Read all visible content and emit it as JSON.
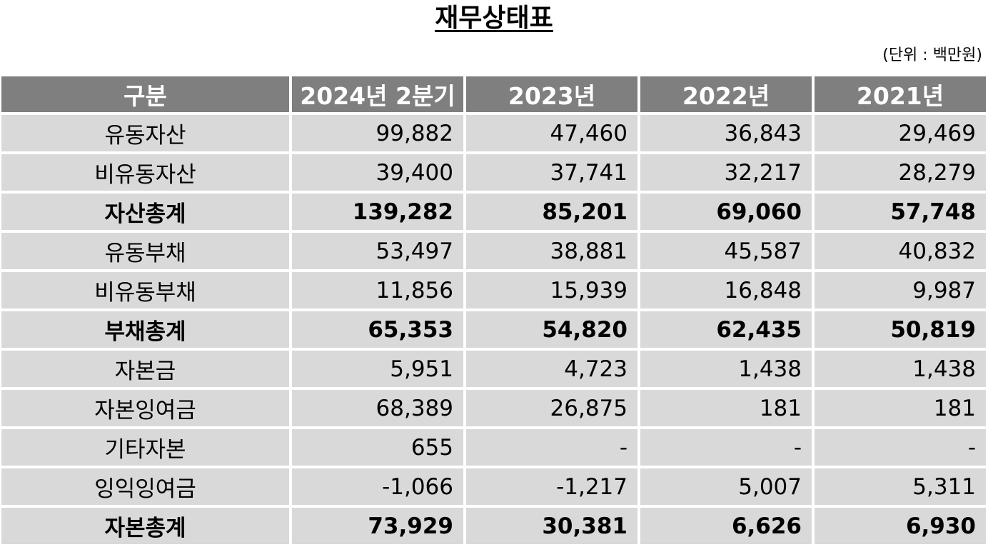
{
  "title": "재무상태표",
  "unit": "(단위 : 백만원)",
  "table": {
    "headers": [
      "구분",
      "2024년 2분기",
      "2023년",
      "2022년",
      "2021년"
    ],
    "rows": [
      {
        "label": "유동자산",
        "values": [
          "99,882",
          "47,460",
          "36,843",
          "29,469"
        ],
        "bold": false
      },
      {
        "label": "비유동자산",
        "values": [
          "39,400",
          "37,741",
          "32,217",
          "28,279"
        ],
        "bold": false
      },
      {
        "label": "자산총계",
        "values": [
          "139,282",
          "85,201",
          "69,060",
          "57,748"
        ],
        "bold": true
      },
      {
        "label": "유동부채",
        "values": [
          "53,497",
          "38,881",
          "45,587",
          "40,832"
        ],
        "bold": false
      },
      {
        "label": "비유동부채",
        "values": [
          "11,856",
          "15,939",
          "16,848",
          "9,987"
        ],
        "bold": false
      },
      {
        "label": "부채총계",
        "values": [
          "65,353",
          "54,820",
          "62,435",
          "50,819"
        ],
        "bold": true
      },
      {
        "label": "자본금",
        "values": [
          "5,951",
          "4,723",
          "1,438",
          "1,438"
        ],
        "bold": false
      },
      {
        "label": "자본잉여금",
        "values": [
          "68,389",
          "26,875",
          "181",
          "181"
        ],
        "bold": false
      },
      {
        "label": "기타자본",
        "values": [
          "655",
          "-",
          "-",
          "-"
        ],
        "bold": false
      },
      {
        "label": "잉익잉여금",
        "values": [
          "-1,066",
          "-1,217",
          "5,007",
          "5,311"
        ],
        "bold": false
      },
      {
        "label": "자본총계",
        "values": [
          "73,929",
          "30,381",
          "6,626",
          "6,930"
        ],
        "bold": true
      }
    ]
  }
}
